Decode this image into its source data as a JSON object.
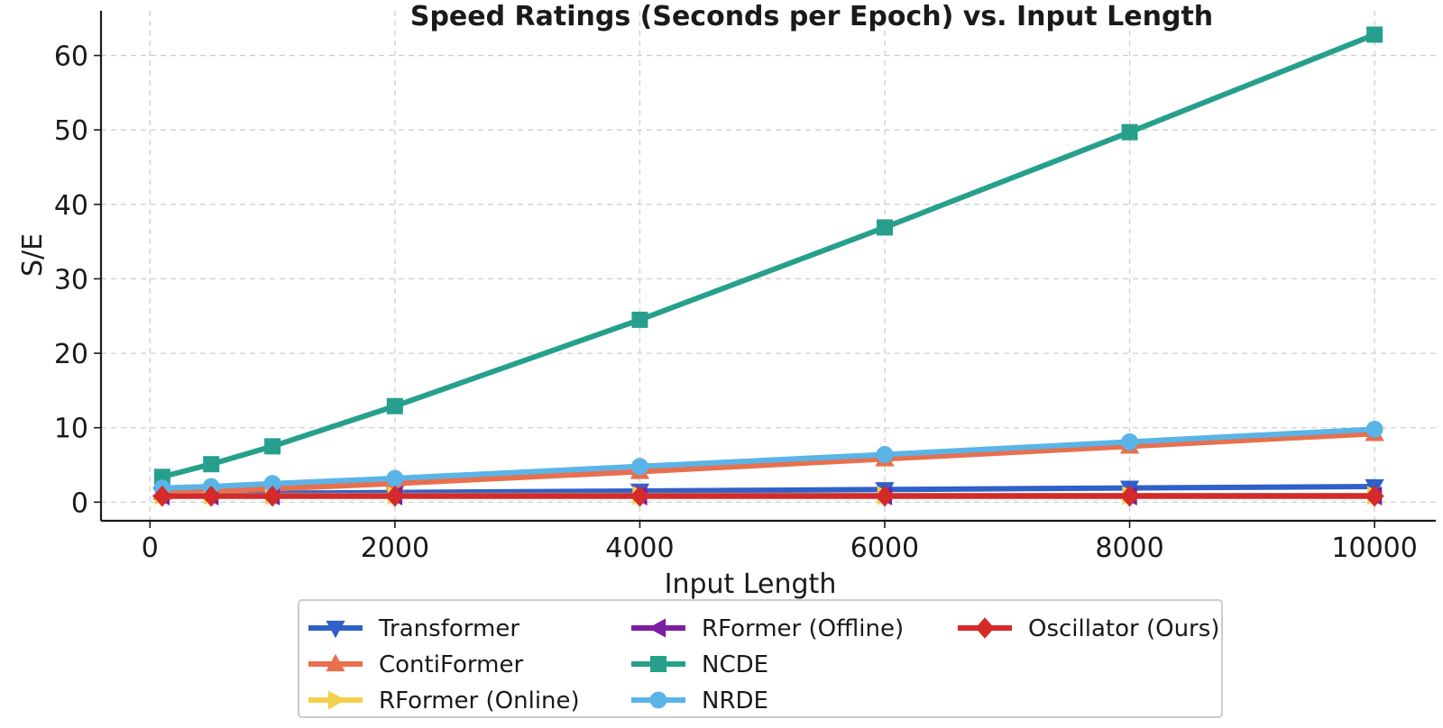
{
  "chart_data": {
    "type": "line",
    "title": "Speed Ratings (Seconds per Epoch) vs. Input Length",
    "xlabel": "Input Length",
    "ylabel": "S/E",
    "xlim": [
      -400,
      10500
    ],
    "ylim": [
      -2.5,
      66
    ],
    "xticks": [
      0,
      2000,
      4000,
      6000,
      8000,
      10000
    ],
    "yticks": [
      0,
      10,
      20,
      30,
      40,
      50,
      60
    ],
    "grid": true,
    "legend_position": "bottom-center",
    "x": [
      100,
      500,
      1000,
      2000,
      4000,
      6000,
      8000,
      10000
    ],
    "series": [
      {
        "name": "Transformer",
        "color": "#3060C8",
        "marker": "triangle-down",
        "values": [
          1.0,
          1.1,
          1.2,
          1.3,
          1.5,
          1.7,
          1.9,
          2.1
        ]
      },
      {
        "name": "ContiFormer",
        "color": "#E8704E",
        "marker": "triangle-up",
        "values": [
          1.3,
          1.5,
          1.8,
          2.5,
          4.1,
          5.8,
          7.5,
          9.2
        ]
      },
      {
        "name": "RFormer (Online)",
        "color": "#F2D04B",
        "marker": "triangle-right",
        "values": [
          0.9,
          0.9,
          0.9,
          0.9,
          0.9,
          0.9,
          0.9,
          0.9
        ]
      },
      {
        "name": "RFormer (Offline)",
        "color": "#7B1FA2",
        "marker": "triangle-left",
        "values": [
          0.85,
          0.85,
          0.85,
          0.85,
          0.85,
          0.85,
          0.85,
          0.85
        ]
      },
      {
        "name": "NCDE",
        "color": "#26A08C",
        "marker": "square",
        "values": [
          3.4,
          5.1,
          7.5,
          12.9,
          24.5,
          36.9,
          49.7,
          62.8
        ]
      },
      {
        "name": "NRDE",
        "color": "#5AB4E8",
        "marker": "circle",
        "values": [
          1.9,
          2.1,
          2.5,
          3.2,
          4.8,
          6.4,
          8.1,
          9.8
        ]
      },
      {
        "name": "Oscillator (Ours)",
        "color": "#D42A2A",
        "marker": "diamond",
        "values": [
          0.8,
          0.8,
          0.8,
          0.8,
          0.8,
          0.8,
          0.8,
          0.8
        ]
      }
    ]
  }
}
